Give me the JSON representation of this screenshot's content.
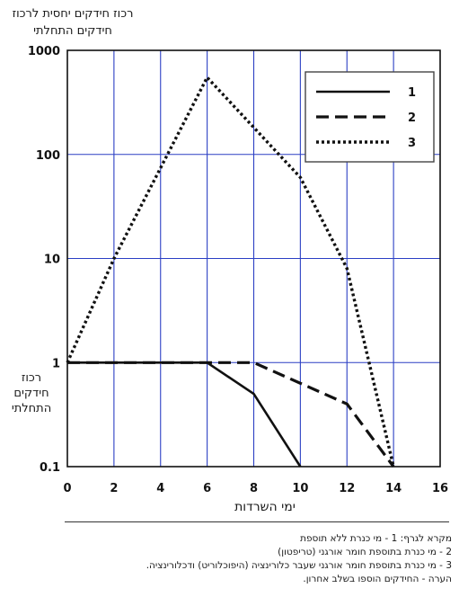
{
  "chart_data": {
    "type": "line",
    "ylabel": "רכוז חידקים יחסית לרכוז חידקים התחלתי",
    "ylabel_side": "רכוז חידקים התחלתי",
    "xlabel": "ימי השרדות",
    "x_ticks": [
      0,
      2,
      4,
      6,
      8,
      10,
      12,
      14,
      16
    ],
    "y_ticks": [
      "0.1",
      "1",
      "10",
      "100",
      "1000"
    ],
    "xlim": [
      0,
      16
    ],
    "ylim": [
      0.1,
      1000
    ],
    "y_scale": "log",
    "grid": true,
    "legend_position": "top-right",
    "series": [
      {
        "name": "1",
        "style": "solid",
        "x": [
          0,
          6,
          8,
          10
        ],
        "y": [
          1,
          1,
          0.5,
          0.1
        ]
      },
      {
        "name": "2",
        "style": "dashed",
        "x": [
          0,
          6,
          8,
          12,
          14
        ],
        "y": [
          1,
          1,
          1,
          0.4,
          0.1
        ]
      },
      {
        "name": "3",
        "style": "dotted",
        "x": [
          0,
          2,
          6,
          10,
          12,
          14
        ],
        "y": [
          1,
          10,
          550,
          60,
          8,
          0.1
        ]
      }
    ]
  },
  "notes": [
    "מקרא לגרף: 1 - מי כנרת ללא תוספת",
    "2 - מי כנרת בתוספת חומר אורגני (טריפטון)",
    "3 - מי כנרת בתוספת חומר אורגני שעבר כלורינציה (היפוכלוריט) ודכלורינציה.",
    "הערה - החידקים הוספו בשלב אחרון."
  ],
  "colors": {
    "line": "#111111",
    "grid": "#2b3fc4",
    "frame": "#111111"
  }
}
